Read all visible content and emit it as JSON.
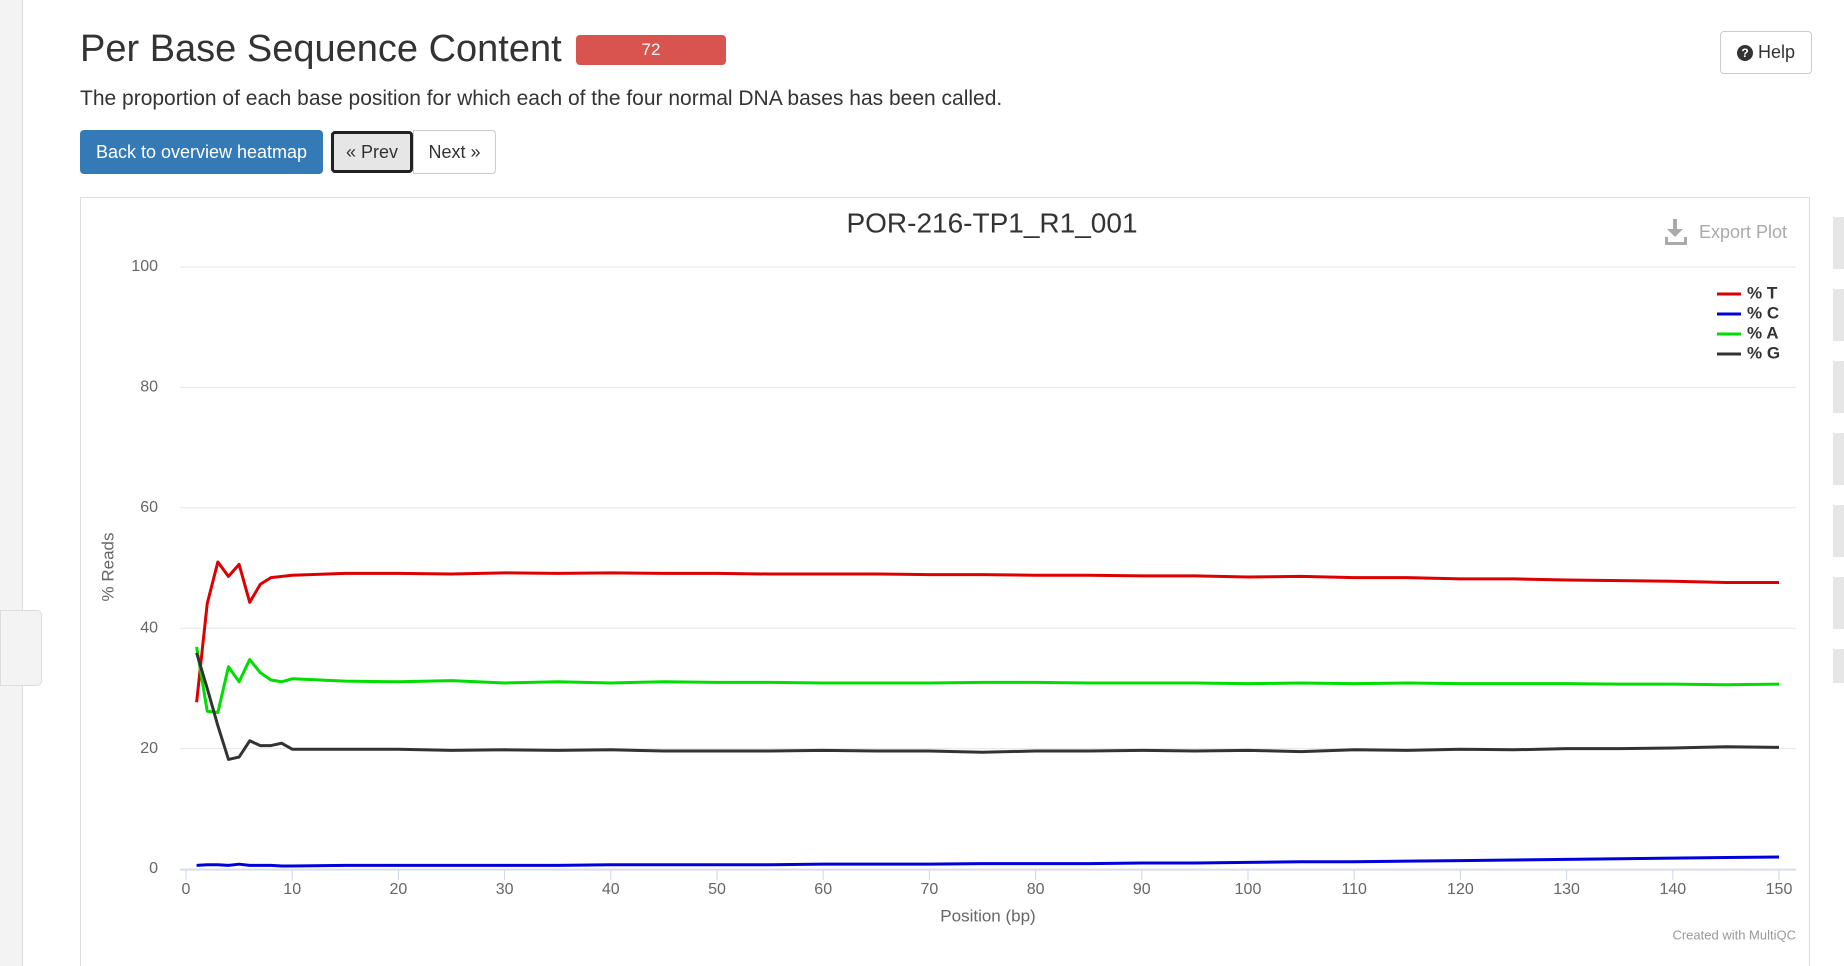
{
  "page": {
    "title": "Per Base Sequence Content",
    "badge": "72",
    "help": "Help",
    "description": "The proportion of each base position for which each of the four normal DNA bases has been called.",
    "buttons": [
      "Back to overview heatmap",
      "« Prev",
      "Next »"
    ],
    "export": "Export Plot",
    "credit": "Created with MultiQC"
  },
  "chart_data": {
    "type": "line",
    "title": "POR-216-TP1_R1_001",
    "x_label": "Position (bp)",
    "y_label": "% Reads",
    "x": [
      1,
      2,
      3,
      4,
      5,
      6,
      7,
      8,
      9,
      10,
      15,
      20,
      25,
      30,
      35,
      40,
      45,
      50,
      55,
      60,
      65,
      70,
      75,
      80,
      85,
      90,
      95,
      100,
      105,
      110,
      115,
      120,
      125,
      130,
      135,
      140,
      145,
      150
    ],
    "xlim": [
      0,
      150
    ],
    "xticks": [
      0,
      10,
      20,
      30,
      40,
      50,
      60,
      70,
      80,
      90,
      100,
      110,
      120,
      130,
      140,
      150
    ],
    "ylim": [
      0,
      100
    ],
    "yticks": [
      0,
      20,
      40,
      60,
      80,
      100
    ],
    "grid": true,
    "legend": "top-right",
    "series": [
      {
        "name": "% T",
        "color": "#dd0000",
        "values": [
          27.7,
          44.1,
          51.0,
          48.6,
          50.6,
          44.3,
          47.3,
          48.4,
          48.6,
          48.8,
          49.1,
          49.1,
          49.0,
          49.2,
          49.1,
          49.2,
          49.1,
          49.1,
          49.0,
          49.0,
          49.0,
          48.9,
          48.9,
          48.8,
          48.8,
          48.7,
          48.7,
          48.5,
          48.6,
          48.4,
          48.4,
          48.2,
          48.2,
          48.0,
          47.9,
          47.8,
          47.6,
          47.6
        ]
      },
      {
        "name": "% C",
        "color": "#0000dd",
        "values": [
          0.6,
          0.7,
          0.7,
          0.6,
          0.8,
          0.6,
          0.6,
          0.6,
          0.5,
          0.5,
          0.6,
          0.6,
          0.6,
          0.6,
          0.6,
          0.7,
          0.7,
          0.7,
          0.7,
          0.8,
          0.8,
          0.8,
          0.9,
          0.9,
          0.9,
          1.0,
          1.0,
          1.1,
          1.2,
          1.2,
          1.3,
          1.4,
          1.5,
          1.6,
          1.7,
          1.8,
          1.9,
          2.0
        ]
      },
      {
        "name": "% A",
        "color": "#00dd00",
        "values": [
          36.9,
          26.2,
          26.0,
          33.6,
          31.1,
          34.8,
          32.6,
          31.4,
          31.1,
          31.6,
          31.2,
          31.1,
          31.3,
          30.9,
          31.1,
          30.9,
          31.1,
          31.0,
          31.0,
          30.9,
          30.9,
          30.9,
          31.0,
          31.0,
          30.9,
          30.9,
          30.9,
          30.8,
          30.9,
          30.8,
          30.9,
          30.8,
          30.8,
          30.8,
          30.7,
          30.7,
          30.6,
          30.7
        ]
      },
      {
        "name": "% G",
        "color": "#333333",
        "values": [
          35.9,
          30.0,
          23.8,
          18.2,
          18.6,
          21.3,
          20.5,
          20.5,
          20.9,
          19.9,
          19.9,
          19.9,
          19.7,
          19.8,
          19.7,
          19.8,
          19.6,
          19.6,
          19.6,
          19.7,
          19.6,
          19.6,
          19.4,
          19.6,
          19.6,
          19.7,
          19.6,
          19.7,
          19.5,
          19.8,
          19.7,
          19.9,
          19.8,
          20.0,
          20.0,
          20.1,
          20.3,
          20.2
        ]
      }
    ]
  }
}
